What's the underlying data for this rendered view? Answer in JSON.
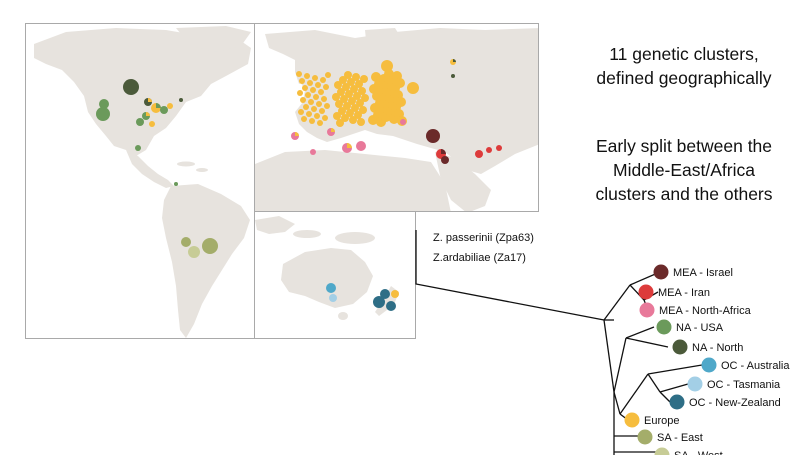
{
  "headline_1": [
    "11 genetic clusters,",
    "defined geographically"
  ],
  "headline_2": [
    "Early split between the",
    "Middle-East/Africa",
    "clusters and the others"
  ],
  "outgroups": [
    "Z. passerinii (Zpa63)",
    "Z.ardabiliae (Za17)"
  ],
  "colors": {
    "land": "#e7e3de",
    "MEA_Israel": "#6b2a2a",
    "MEA_Iran": "#dd3b3b",
    "MEA_NorthAfrica": "#e8799a",
    "NA_USA": "#6b9a5b",
    "NA_North": "#4b5a3a",
    "OC_Australia": "#4fa8c9",
    "OC_Tasmania": "#a3cfe6",
    "OC_NewZealand": "#2e6e86",
    "Europe": "#f6bd3e",
    "SA_East": "#a4ad6a",
    "SA_West": "#c7cc96"
  },
  "clusters": [
    {
      "label": "MEA - Israel",
      "color": "#6b2a2a"
    },
    {
      "label": "MEA - Iran",
      "color": "#dd3b3b"
    },
    {
      "label": "MEA - North-Africa",
      "color": "#e8799a"
    },
    {
      "label": "NA - USA",
      "color": "#6b9a5b"
    },
    {
      "label": "NA - North",
      "color": "#4b5a3a"
    },
    {
      "label": "OC - Australia",
      "color": "#4fa8c9"
    },
    {
      "label": "OC - Tasmania",
      "color": "#a3cfe6"
    },
    {
      "label": "OC - New-Zealand",
      "color": "#2e6e86"
    },
    {
      "label": "Europe",
      "color": "#f6bd3e"
    },
    {
      "label": "SA - East",
      "color": "#a4ad6a"
    },
    {
      "label": "SA - West",
      "color": "#c7cc96"
    }
  ]
}
